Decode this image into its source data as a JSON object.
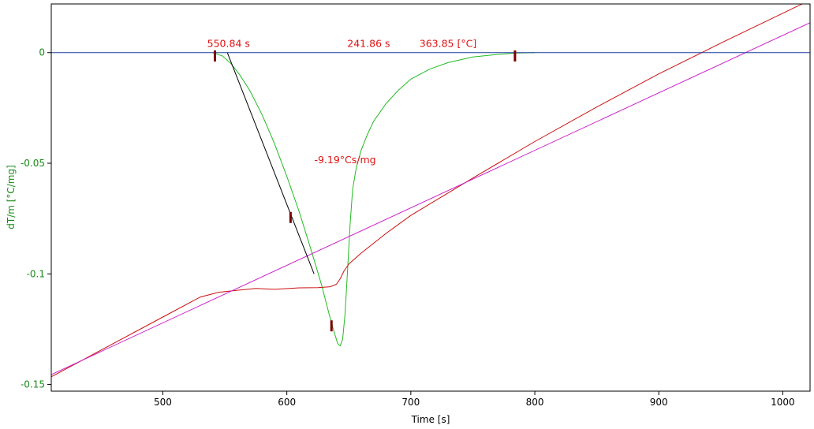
{
  "chart_data": {
    "type": "line",
    "title": "",
    "xlabel": "Time [s]",
    "ylabel": "dT/m  [°C/mg]",
    "xlim": [
      410,
      1022
    ],
    "ylim": [
      -0.153,
      0.022
    ],
    "x_ticks": [
      500,
      600,
      700,
      800,
      900,
      1000
    ],
    "y_ticks": [
      0,
      -0.05,
      -0.1,
      -0.15
    ],
    "grid": false,
    "legend": "none",
    "colors": {
      "axis": "#000000",
      "y_axis_text": "#1a8a1a",
      "annotation": "#e01010",
      "marker": "#7a0000"
    },
    "series": [
      {
        "color": "#22bb22",
        "points": [
          [
            540,
            0
          ],
          [
            548,
            -0.0015
          ],
          [
            555,
            -0.005
          ],
          [
            562,
            -0.01
          ],
          [
            570,
            -0.017
          ],
          [
            580,
            -0.028
          ],
          [
            590,
            -0.041
          ],
          [
            600,
            -0.056
          ],
          [
            610,
            -0.072
          ],
          [
            620,
            -0.09
          ],
          [
            628,
            -0.105
          ],
          [
            634,
            -0.118
          ],
          [
            638,
            -0.126
          ],
          [
            641,
            -0.1315
          ],
          [
            643,
            -0.1325
          ],
          [
            645,
            -0.1295
          ],
          [
            647,
            -0.118
          ],
          [
            649,
            -0.098
          ],
          [
            651,
            -0.078
          ],
          [
            653,
            -0.062
          ],
          [
            656,
            -0.052
          ],
          [
            660,
            -0.044
          ],
          [
            665,
            -0.037
          ],
          [
            670,
            -0.031
          ],
          [
            680,
            -0.023
          ],
          [
            690,
            -0.017
          ],
          [
            700,
            -0.012
          ],
          [
            715,
            -0.0075
          ],
          [
            730,
            -0.0045
          ],
          [
            750,
            -0.002
          ],
          [
            770,
            -0.0008
          ],
          [
            785,
            -0.0002
          ],
          [
            800,
            0
          ]
        ]
      },
      {
        "color": "#cc1111",
        "points": [
          [
            410,
            -0.1465
          ],
          [
            450,
            -0.1345
          ],
          [
            500,
            -0.1195
          ],
          [
            530,
            -0.1105
          ],
          [
            545,
            -0.1083
          ],
          [
            560,
            -0.1074
          ],
          [
            575,
            -0.1066
          ],
          [
            590,
            -0.107
          ],
          [
            610,
            -0.1063
          ],
          [
            625,
            -0.1062
          ],
          [
            635,
            -0.1058
          ],
          [
            640,
            -0.1047
          ],
          [
            643,
            -0.1022
          ],
          [
            646,
            -0.0988
          ],
          [
            650,
            -0.0955
          ],
          [
            660,
            -0.0906
          ],
          [
            680,
            -0.0817
          ],
          [
            700,
            -0.0736
          ],
          [
            750,
            -0.0567
          ],
          [
            800,
            -0.0402
          ],
          [
            850,
            -0.0246
          ],
          [
            900,
            -0.0096
          ],
          [
            950,
            0.0043
          ],
          [
            1000,
            0.0178
          ],
          [
            1022,
            0.0237
          ]
        ]
      },
      {
        "color": "#cc22cc",
        "points": [
          [
            410,
            -0.1455
          ],
          [
            1022,
            0.0135
          ]
        ]
      },
      {
        "color": "#1f3fa0",
        "points": [
          [
            410,
            0
          ],
          [
            1022,
            0
          ]
        ]
      },
      {
        "color": "#000000",
        "points": [
          [
            552,
            0
          ],
          [
            622,
            -0.1
          ]
        ]
      }
    ],
    "annotations": [
      {
        "text": "550.84 s",
        "x": 553,
        "y": 0.0025
      },
      {
        "text": "241.86 s",
        "x": 666,
        "y": 0.0025
      },
      {
        "text": "363.85 [°C]",
        "x": 730,
        "y": 0.0025
      },
      {
        "text": "-9.19°Cs/mg",
        "x": 647,
        "y": -0.05
      }
    ],
    "markers": [
      {
        "x": 542,
        "y": -0.0015
      },
      {
        "x": 603,
        "y": -0.0745
      },
      {
        "x": 636,
        "y": -0.1235
      },
      {
        "x": 784,
        "y": -0.0015
      }
    ]
  }
}
